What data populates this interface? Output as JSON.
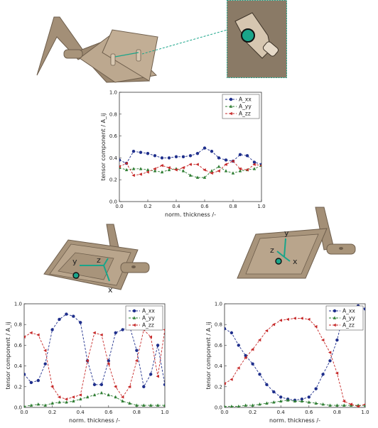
{
  "colors": {
    "xx": "#1f2f8c",
    "yy": "#2e7d32",
    "zz": "#c62828",
    "part_body": "#b8a48c",
    "part_dark": "#6e5e4c",
    "accent_marker": "#1aa58a"
  },
  "icons": {
    "top_part": "ribbed-plate-part-icon",
    "zoom_inset": "zoomed-hole-insert-icon",
    "left_part": "plate-part-coordinate-frame-icon",
    "right_part": "plate-part-coordinate-frame-icon"
  },
  "coordinate_labels": {
    "left": {
      "x": "x",
      "y": "y",
      "z": "z"
    },
    "right": {
      "x": "x",
      "y": "y",
      "z": "z"
    }
  },
  "chart_data": [
    {
      "type": "line",
      "xlabel": "norm. thickness /-",
      "ylabel": "tensor component / A_ij",
      "xlim": [
        0,
        1
      ],
      "ylim": [
        0,
        1
      ],
      "xticks": [
        "0.0",
        "0.2",
        "0.4",
        "0.6",
        "0.8",
        "1.0"
      ],
      "yticks": [
        "0.0",
        "0.2",
        "0.4",
        "0.6",
        "0.8",
        "1.0"
      ],
      "legend_position": "top-right",
      "grid": false,
      "x": [
        0.0,
        0.05,
        0.1,
        0.15,
        0.2,
        0.25,
        0.3,
        0.35,
        0.4,
        0.45,
        0.5,
        0.55,
        0.6,
        0.65,
        0.7,
        0.75,
        0.8,
        0.85,
        0.9,
        0.95,
        1.0
      ],
      "series": [
        {
          "name": "A_xx",
          "key": "xx",
          "marker": "circle",
          "values": [
            0.38,
            0.35,
            0.46,
            0.45,
            0.44,
            0.42,
            0.4,
            0.4,
            0.41,
            0.41,
            0.42,
            0.44,
            0.49,
            0.46,
            0.4,
            0.38,
            0.37,
            0.43,
            0.42,
            0.36,
            0.34
          ]
        },
        {
          "name": "A_yy",
          "key": "yy",
          "marker": "triangle-up",
          "values": [
            0.31,
            0.29,
            0.3,
            0.3,
            0.29,
            0.28,
            0.27,
            0.29,
            0.3,
            0.28,
            0.24,
            0.22,
            0.22,
            0.28,
            0.32,
            0.28,
            0.26,
            0.28,
            0.29,
            0.3,
            0.33
          ]
        },
        {
          "name": "A_zz",
          "key": "zz",
          "marker": "triangle-left",
          "values": [
            0.32,
            0.35,
            0.24,
            0.25,
            0.27,
            0.3,
            0.33,
            0.31,
            0.29,
            0.31,
            0.34,
            0.34,
            0.29,
            0.26,
            0.28,
            0.34,
            0.37,
            0.3,
            0.29,
            0.34,
            0.33
          ]
        }
      ]
    },
    {
      "type": "line",
      "xlabel": "norm. thickness /-",
      "ylabel": "tensor component / A_ij",
      "xlim": [
        0,
        1
      ],
      "ylim": [
        0,
        1
      ],
      "xticks": [
        "0.0",
        "0.2",
        "0.4",
        "0.6",
        "0.8",
        "1.0"
      ],
      "yticks": [
        "0.0",
        "0.2",
        "0.4",
        "0.6",
        "0.8",
        "1.0"
      ],
      "legend_position": "top-right",
      "grid": false,
      "x": [
        0.0,
        0.05,
        0.1,
        0.15,
        0.2,
        0.25,
        0.3,
        0.35,
        0.4,
        0.45,
        0.5,
        0.55,
        0.6,
        0.65,
        0.7,
        0.75,
        0.8,
        0.85,
        0.9,
        0.95,
        1.0
      ],
      "series": [
        {
          "name": "A_xx",
          "key": "xx",
          "marker": "circle",
          "values": [
            0.32,
            0.24,
            0.26,
            0.42,
            0.75,
            0.85,
            0.9,
            0.88,
            0.82,
            0.45,
            0.22,
            0.22,
            0.45,
            0.72,
            0.75,
            0.78,
            0.55,
            0.2,
            0.32,
            0.6,
            0.22
          ]
        },
        {
          "name": "A_yy",
          "key": "yy",
          "marker": "triangle-up",
          "values": [
            0.01,
            0.02,
            0.03,
            0.02,
            0.04,
            0.05,
            0.05,
            0.06,
            0.08,
            0.1,
            0.12,
            0.14,
            0.12,
            0.1,
            0.06,
            0.04,
            0.02,
            0.02,
            0.02,
            0.02,
            0.02
          ]
        },
        {
          "name": "A_zz",
          "key": "zz",
          "marker": "triangle-left",
          "values": [
            0.68,
            0.72,
            0.7,
            0.55,
            0.2,
            0.1,
            0.08,
            0.1,
            0.12,
            0.45,
            0.72,
            0.7,
            0.42,
            0.2,
            0.1,
            0.2,
            0.45,
            0.75,
            0.68,
            0.3,
            0.75
          ]
        }
      ]
    },
    {
      "type": "line",
      "xlabel": "norm. thickness /-",
      "ylabel": "tensor component / A_ij",
      "xlim": [
        0,
        1
      ],
      "ylim": [
        0,
        1
      ],
      "xticks": [
        "0.0",
        "0.2",
        "0.4",
        "0.6",
        "0.8",
        "1.0"
      ],
      "yticks": [
        "0.0",
        "0.2",
        "0.4",
        "0.6",
        "0.8",
        "1.0"
      ],
      "legend_position": "top-right",
      "grid": false,
      "x": [
        0.0,
        0.05,
        0.1,
        0.15,
        0.2,
        0.25,
        0.3,
        0.35,
        0.4,
        0.45,
        0.5,
        0.55,
        0.6,
        0.65,
        0.7,
        0.75,
        0.8,
        0.85,
        0.9,
        0.95,
        1.0
      ],
      "series": [
        {
          "name": "A_xx",
          "key": "xx",
          "marker": "circle",
          "values": [
            0.76,
            0.72,
            0.6,
            0.5,
            0.42,
            0.32,
            0.22,
            0.15,
            0.1,
            0.08,
            0.07,
            0.08,
            0.1,
            0.18,
            0.32,
            0.45,
            0.65,
            0.92,
            0.95,
            0.98,
            0.95
          ]
        },
        {
          "name": "A_yy",
          "key": "yy",
          "marker": "triangle-up",
          "values": [
            0.01,
            0.01,
            0.01,
            0.02,
            0.02,
            0.03,
            0.04,
            0.05,
            0.06,
            0.07,
            0.06,
            0.06,
            0.05,
            0.04,
            0.03,
            0.02,
            0.02,
            0.02,
            0.02,
            0.02,
            0.02
          ]
        },
        {
          "name": "A_zz",
          "key": "zz",
          "marker": "triangle-left",
          "values": [
            0.23,
            0.27,
            0.38,
            0.48,
            0.56,
            0.65,
            0.74,
            0.8,
            0.84,
            0.85,
            0.86,
            0.86,
            0.85,
            0.78,
            0.65,
            0.53,
            0.33,
            0.06,
            0.03,
            0.01,
            0.03
          ]
        }
      ]
    }
  ]
}
